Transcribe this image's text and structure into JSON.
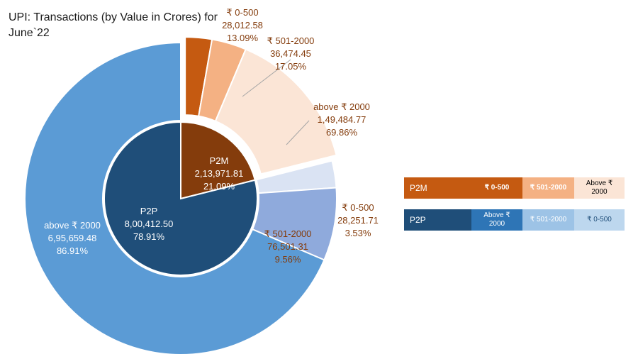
{
  "title": "UPI: Transactions (by Value in Crores) for June`22",
  "colors": {
    "p2m_inner": "#843c0c",
    "p2m_0_500": "#c55a11",
    "p2m_501_2000": "#f4b183",
    "p2m_above_2000": "#fbe5d6",
    "p2p_inner": "#1f4e79",
    "p2p_above_2000": "#5b9bd5",
    "p2p_501_2000": "#8faadc",
    "p2p_0_500": "#dae3f3",
    "label_brown": "#843c0c",
    "label_white": "#ffffff"
  },
  "chart_data": {
    "type": "pie",
    "title": "UPI: Transactions (by Value in Crores) for June`22",
    "inner": [
      {
        "name": "P2M",
        "value": 213971.81,
        "value_label": "2,13,971.81",
        "percent_label": "21.09%",
        "color_key": "p2m_inner"
      },
      {
        "name": "P2P",
        "value": 800412.5,
        "value_label": "8,00,412.50",
        "percent_label": "78.91%",
        "color_key": "p2p_inner"
      }
    ],
    "outer": [
      {
        "group": "P2M",
        "name": "₹ 0-500",
        "value": 28012.58,
        "value_label": "28,012.58",
        "percent_label": "13.09%",
        "color_key": "p2m_0_500"
      },
      {
        "group": "P2M",
        "name": "₹ 501-2000",
        "value": 36474.45,
        "value_label": "36,474.45",
        "percent_label": "17.05%",
        "color_key": "p2m_501_2000"
      },
      {
        "group": "P2M",
        "name": "above ₹ 2000",
        "value": 149484.77,
        "value_label": "1,49,484.77",
        "percent_label": "69.86%",
        "color_key": "p2m_above_2000"
      },
      {
        "group": "P2P",
        "name": "₹  0-500",
        "value": 28251.71,
        "value_label": "28,251.71",
        "percent_label": "3.53%",
        "color_key": "p2p_0_500"
      },
      {
        "group": "P2P",
        "name": "₹ 501-2000",
        "value": 76501.31,
        "value_label": "76,501.31",
        "percent_label": "9.56%",
        "color_key": "p2p_501_2000"
      },
      {
        "group": "P2P",
        "name": "above ₹ 2000",
        "value": 695659.48,
        "value_label": "6,95,659.48",
        "percent_label": "86.91%",
        "color_key": "p2p_above_2000"
      }
    ]
  },
  "legend": {
    "p2m": {
      "label": "P2M",
      "items": [
        "₹ 0-500",
        "₹ 501-2000",
        "Above ₹ 2000"
      ]
    },
    "p2p": {
      "label": "P2P",
      "items": [
        "Above ₹ 2000",
        "₹ 501-2000",
        "₹ 0-500"
      ]
    }
  }
}
